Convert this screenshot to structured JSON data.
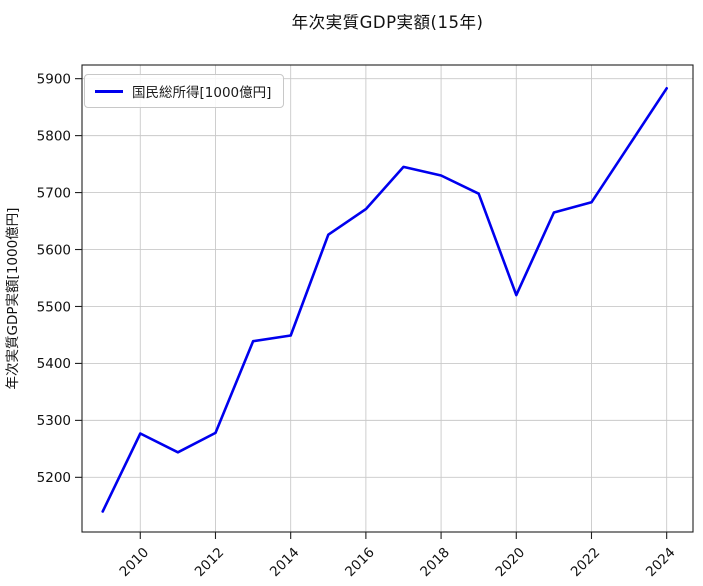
{
  "chart_data": {
    "type": "line",
    "title": "年次実質GDP実額(15年)",
    "xlabel": "",
    "ylabel": "年次実質GDP実額[1000億円]",
    "x": [
      2009,
      2010,
      2011,
      2012,
      2013,
      2014,
      2015,
      2016,
      2017,
      2018,
      2019,
      2020,
      2021,
      2022,
      2023,
      2024
    ],
    "series": [
      {
        "name": "国民総所得[1000億円]",
        "color": "#0000ee",
        "values": [
          5140,
          5277,
          5244,
          5278,
          5439,
          5449,
          5626,
          5671,
          5745,
          5730,
          5698,
          5520,
          5665,
          5683,
          5783,
          5883
        ]
      }
    ],
    "xticks": [
      2010,
      2012,
      2014,
      2016,
      2018,
      2020,
      2022,
      2024
    ],
    "yticks": [
      5200,
      5300,
      5400,
      5500,
      5600,
      5700,
      5800,
      5900
    ],
    "xlim": [
      2008.45,
      2024.7
    ],
    "ylim": [
      5104,
      5924
    ],
    "grid": true,
    "legend_position": "upper-left"
  },
  "colors": {
    "line": "#0000ee",
    "grid": "#c9c9c9",
    "spine": "#1f1f1f",
    "tick_text": "#111111",
    "background": "#ffffff"
  }
}
